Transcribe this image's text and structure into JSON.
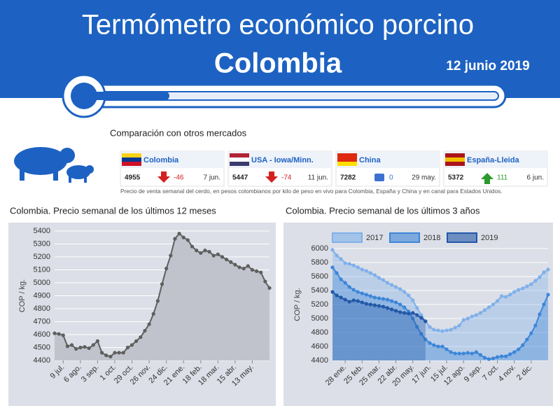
{
  "header": {
    "title": "Termómetro económico porcino",
    "subtitle": "Colombia",
    "date": "12 junio 2019"
  },
  "section": "Comparación con otros mercados",
  "markets": [
    {
      "name": "Colombia",
      "price": 4955,
      "change": -46,
      "date": "7 jun."
    },
    {
      "name": "USA - Iowa/Minn.",
      "price": 5447,
      "change": -74,
      "date": "11 jun."
    },
    {
      "name": "China",
      "price": 7282,
      "change": 0,
      "date": "29 may."
    },
    {
      "name": "España-Lleida",
      "price": 5372,
      "change": 111,
      "date": "6 jun."
    }
  ],
  "note": "Precio de venta semanal del cerdo, en pesos colombianos por kilo de peso en vivo para Colombia, España y China y en canal para Estados Unidos.",
  "chart_data": [
    {
      "type": "area",
      "title": "Colombia. Precio semanal de los últimos 12 meses",
      "y_label": "COP / kg.",
      "categories": [
        null,
        null,
        "9 jul.",
        null,
        null,
        null,
        "6 ago.",
        null,
        null,
        null,
        "3 sep.",
        null,
        null,
        null,
        "1 oct.",
        null,
        null,
        null,
        "29 oct.",
        null,
        null,
        null,
        "26 nov.",
        null,
        null,
        null,
        "24 dic.",
        null,
        null,
        null,
        "21 ene.",
        null,
        null,
        null,
        "18 feb.",
        null,
        null,
        null,
        "18 mar.",
        null,
        null,
        null,
        "15 abr.",
        null,
        null,
        null,
        "13 may.",
        null,
        null,
        null,
        null
      ],
      "values": [
        4610,
        4605,
        4595,
        4510,
        4520,
        4490,
        4500,
        4505,
        4495,
        4520,
        4550,
        4460,
        4440,
        4430,
        4460,
        4460,
        4460,
        4500,
        4520,
        4550,
        4580,
        4630,
        4680,
        4760,
        4860,
        4990,
        5110,
        5210,
        5340,
        5380,
        5350,
        5330,
        5280,
        5250,
        5230,
        5250,
        5240,
        5210,
        5220,
        5200,
        5180,
        5160,
        5140,
        5120,
        5110,
        5130,
        5100,
        5090,
        5080,
        5010,
        4960
      ],
      "color": "#5f5f5f",
      "ylim": [
        4400,
        5400
      ],
      "yticks": [
        4400,
        4500,
        4600,
        4700,
        4800,
        4900,
        5000,
        5100,
        5200,
        5300,
        5400
      ],
      "grid": true
    },
    {
      "type": "area",
      "title": "Colombia. Precio semanal de los últimos 3 años",
      "y_label": "COP / kg.",
      "categories": [
        null,
        null,
        null,
        "28 ene.",
        null,
        null,
        null,
        "25 feb.",
        null,
        null,
        null,
        "25 mar.",
        null,
        null,
        null,
        "22 abr.",
        null,
        null,
        null,
        "20 may.",
        null,
        null,
        null,
        "17 jun.",
        null,
        null,
        null,
        "15 jul.",
        null,
        null,
        null,
        "12 ago.",
        null,
        null,
        null,
        "9 sep.",
        null,
        null,
        null,
        "7 oct.",
        null,
        null,
        null,
        "4 nov.",
        null,
        null,
        null,
        "2 dic.",
        null,
        null,
        null,
        null
      ],
      "series": [
        {
          "name": "2017",
          "color": "#7fb0ea",
          "values": [
            5980,
            5900,
            5850,
            5790,
            5780,
            5760,
            5730,
            5700,
            5680,
            5650,
            5620,
            5580,
            5550,
            5510,
            5480,
            5450,
            5420,
            5380,
            5330,
            5260,
            5150,
            5050,
            4960,
            4880,
            4840,
            4830,
            4820,
            4830,
            4840,
            4870,
            4900,
            4980,
            5000,
            5030,
            5050,
            5080,
            5120,
            5160,
            5200,
            5250,
            5320,
            5310,
            5340,
            5380,
            5410,
            5430,
            5460,
            5490,
            5540,
            5590,
            5660,
            5700
          ]
        },
        {
          "name": "2018",
          "color": "#3d86d8",
          "values": [
            5730,
            5650,
            5560,
            5510,
            5450,
            5410,
            5380,
            5360,
            5340,
            5320,
            5300,
            5290,
            5280,
            5270,
            5250,
            5230,
            5200,
            5160,
            5100,
            5000,
            4880,
            4780,
            4700,
            4650,
            4620,
            4600,
            4600,
            4560,
            4520,
            4500,
            4500,
            4500,
            4510,
            4500,
            4520,
            4480,
            4440,
            4420,
            4430,
            4450,
            4460,
            4460,
            4490,
            4520,
            4560,
            4620,
            4700,
            4790,
            4900,
            5060,
            5200,
            5340
          ]
        },
        {
          "name": "2019",
          "color": "#2358a8",
          "values": [
            5380,
            5330,
            5300,
            5270,
            5240,
            5260,
            5250,
            5230,
            5210,
            5200,
            5190,
            5180,
            5170,
            5150,
            5130,
            5110,
            5090,
            5080,
            5070,
            5080,
            5050,
            5010,
            4960,
            null,
            null,
            null,
            null,
            null,
            null,
            null,
            null,
            null,
            null,
            null,
            null,
            null,
            null,
            null,
            null,
            null,
            null,
            null,
            null,
            null,
            null,
            null,
            null,
            null,
            null,
            null,
            null,
            null
          ]
        }
      ],
      "ylim": [
        4400,
        6000
      ],
      "yticks": [
        4400,
        4600,
        4800,
        5000,
        5200,
        5400,
        5600,
        5800,
        6000
      ],
      "grid": true,
      "legend": "top"
    }
  ]
}
